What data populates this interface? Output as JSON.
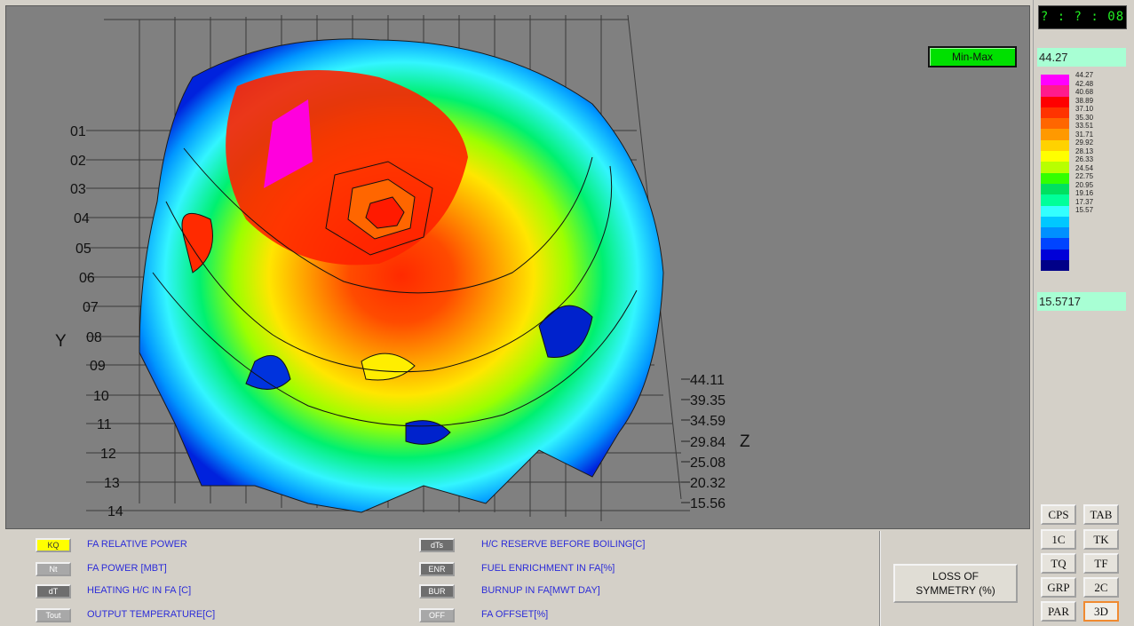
{
  "plot": {
    "y_axis_label": "Y",
    "z_axis_label": "Z",
    "y_ticks": [
      "01",
      "02",
      "03",
      "04",
      "05",
      "06",
      "07",
      "08",
      "09",
      "10",
      "11",
      "12",
      "13",
      "14"
    ],
    "z_ticks": [
      "44.11",
      "39.35",
      "34.59",
      "29.84",
      "25.08",
      "20.32",
      "15.56"
    ],
    "minmax_label": "Min-Max"
  },
  "right_panel": {
    "clock": "? : ? : 08",
    "max_value": "44.27",
    "min_value": "15.5717",
    "legend_levels": [
      "44.27",
      "42.48",
      "40.68",
      "38.89",
      "37.10",
      "35.30",
      "33.51",
      "31.71",
      "29.92",
      "28.13",
      "26.33",
      "24.54",
      "22.75",
      "20.95",
      "19.16",
      "17.37",
      "15.57"
    ],
    "legend_colors": [
      "#ff00ff",
      "#ff1b8d",
      "#ff0000",
      "#ff3300",
      "#ff6600",
      "#ff9900",
      "#ffd200",
      "#ffff00",
      "#b8ff00",
      "#33ff00",
      "#00e060",
      "#00ff99",
      "#33ffff",
      "#00c8ff",
      "#0090ff",
      "#0044ff",
      "#0000d8",
      "#000088"
    ],
    "nav_buttons": [
      {
        "label": "CPS",
        "active": false
      },
      {
        "label": "TAB",
        "active": false
      },
      {
        "label": "1C",
        "active": false
      },
      {
        "label": "TK",
        "active": false
      },
      {
        "label": "TQ",
        "active": false
      },
      {
        "label": "TF",
        "active": false
      },
      {
        "label": "GRP",
        "active": false
      },
      {
        "label": "2C",
        "active": false
      },
      {
        "label": "PAR",
        "active": false
      },
      {
        "label": "3D",
        "active": true
      }
    ]
  },
  "bottom_panel": {
    "modes_left": [
      {
        "button": "KQ",
        "label": "FA RELATIVE POWER",
        "selected": true
      },
      {
        "button": "Nt",
        "label": "FA POWER [MBT]",
        "selected": false
      },
      {
        "button": "dT",
        "label": "HEATING H/C IN FA [C]",
        "selected": false
      },
      {
        "button": "Tout",
        "label": "OUTPUT TEMPERATURE[C]",
        "selected": false
      }
    ],
    "modes_right": [
      {
        "button": "dTs",
        "label": "H/C RESERVE BEFORE BOILING[C]",
        "selected": false
      },
      {
        "button": "ENR",
        "label": "FUEL ENRICHMENT IN FA[%]",
        "selected": false
      },
      {
        "button": "BUR",
        "label": "BURNUP IN FA[MWT DAY]",
        "selected": false
      },
      {
        "button": "OFF",
        "label": "FA OFFSET[%]",
        "selected": false
      }
    ],
    "loss_of_symmetry_line1": "LOSS OF",
    "loss_of_symmetry_line2": "SYMMETRY (%)"
  }
}
